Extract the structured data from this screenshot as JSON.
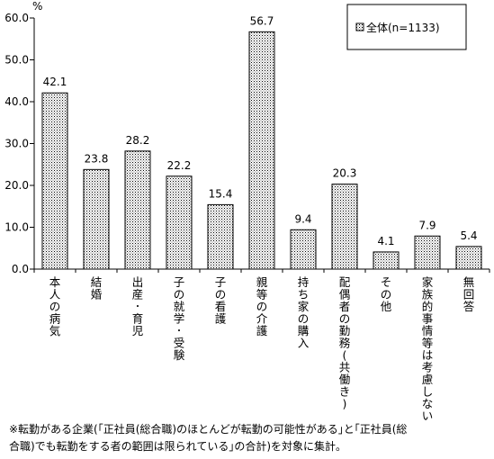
{
  "chart_data": {
    "type": "bar",
    "y_unit": "%",
    "ylim": [
      0,
      60
    ],
    "yticks": [
      "0.0",
      "10.0",
      "20.0",
      "30.0",
      "40.0",
      "50.0",
      "60.0"
    ],
    "categories": [
      "本人の病気",
      "結婚",
      "出産･育児",
      "子の就学･受験",
      "子の看護",
      "親等の介護",
      "持ち家の購入",
      "配偶者の勤務(共働き)",
      "その他",
      "家族的事情等は考慮しない",
      "無回答"
    ],
    "series": [
      {
        "name": "全体(n=1133)",
        "values": [
          42.1,
          23.8,
          28.2,
          22.2,
          15.4,
          56.7,
          9.4,
          20.3,
          4.1,
          7.9,
          5.4
        ],
        "labels": [
          "42.1",
          "23.8",
          "28.2",
          "22.2",
          "15.4",
          "56.7",
          "9.4",
          "20.3",
          "4.1",
          "7.9",
          "5.4"
        ]
      }
    ],
    "grid": false,
    "legend_position": "top-right"
  },
  "note": {
    "line1": "※転勤がある企業(｢正社員(総合職)のほとんどが転勤の可能性がある｣と｢正社員(総",
    "line2": "合職)でも転勤をする者の範囲は限られている｣の合計)を対象に集計。"
  }
}
